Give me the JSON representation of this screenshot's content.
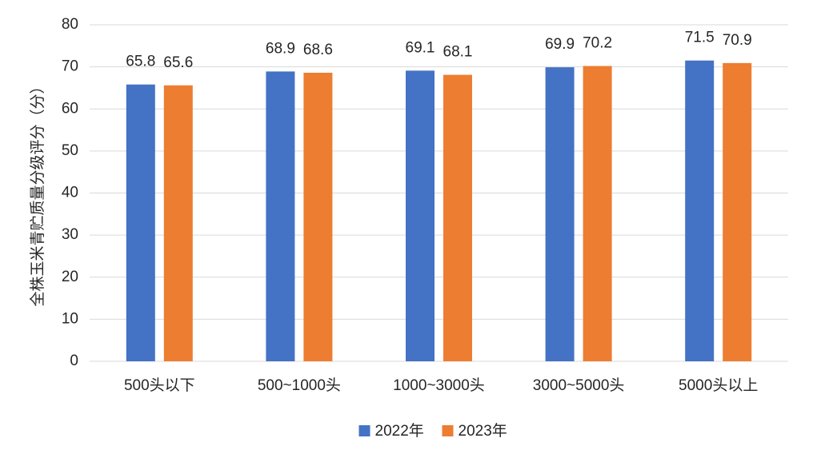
{
  "chart_data": {
    "type": "bar",
    "y_label": "全株玉米青贮质量分级评分（分）",
    "categories": [
      "500头以下",
      "500~1000头",
      "1000~3000头",
      "3000~5000头",
      "5000头以上"
    ],
    "series": [
      {
        "name": "2022年",
        "color": "#4472c4",
        "values": [
          65.8,
          68.9,
          69.1,
          69.9,
          71.5
        ]
      },
      {
        "name": "2023年",
        "color": "#ed7d31",
        "values": [
          65.6,
          68.6,
          68.1,
          70.2,
          70.9
        ]
      }
    ],
    "ylim": [
      0,
      80
    ],
    "yticks": [
      0,
      10,
      20,
      30,
      40,
      50,
      60,
      70,
      80
    ],
    "grid": true,
    "legend": "bottom"
  }
}
